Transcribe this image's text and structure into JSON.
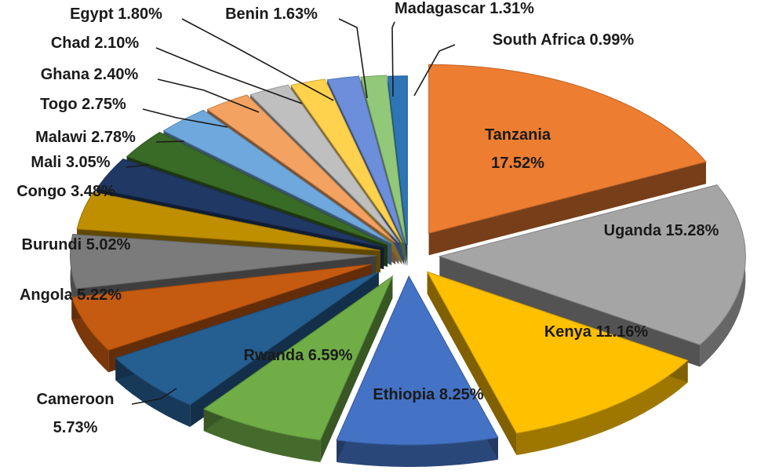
{
  "chart_data": {
    "type": "pie",
    "style": "3d-exploded",
    "title": "",
    "slices": [
      {
        "label": "Tanzania",
        "value": 17.52,
        "text": "Tanzania\n17.52%",
        "color": "#ED7D31"
      },
      {
        "label": "Uganda",
        "value": 15.28,
        "text": "Uganda 15.28%",
        "color": "#A5A5A5"
      },
      {
        "label": "Kenya",
        "value": 11.16,
        "text": "Kenya 11.16%",
        "color": "#FFC000"
      },
      {
        "label": "Ethiopia",
        "value": 8.25,
        "text": "Ethiopia 8.25%",
        "color": "#4472C4"
      },
      {
        "label": "Rwanda",
        "value": 6.59,
        "text": "Rwanda 6.59%",
        "color": "#70AD47"
      },
      {
        "label": "Cameroon",
        "value": 5.73,
        "text": "Cameroon\n5.73%",
        "color": "#255E91"
      },
      {
        "label": "Angola",
        "value": 5.22,
        "text": "Angola 5.22%",
        "color": "#C55A11"
      },
      {
        "label": "Burundi",
        "value": 5.02,
        "text": "Burundi 5.02%",
        "color": "#7B7B7B"
      },
      {
        "label": "Congo",
        "value": 3.48,
        "text": "Congo 3.48%",
        "color": "#BF8F00"
      },
      {
        "label": "Mali",
        "value": 3.05,
        "text": "Mali 3.05%",
        "color": "#203864"
      },
      {
        "label": "Malawi",
        "value": 2.78,
        "text": "Malawi 2.78%",
        "color": "#3A6B26"
      },
      {
        "label": "Togo",
        "value": 2.75,
        "text": "Togo 2.75%",
        "color": "#6FA8DC"
      },
      {
        "label": "Ghana",
        "value": 2.4,
        "text": "Ghana 2.40%",
        "color": "#F4A261"
      },
      {
        "label": "Chad",
        "value": 2.1,
        "text": "Chad 2.10%",
        "color": "#BFBFBF"
      },
      {
        "label": "Egypt",
        "value": 1.8,
        "text": "Egypt 1.80%",
        "color": "#FFD24D"
      },
      {
        "label": "Benin",
        "value": 1.63,
        "text": "Benin 1.63%",
        "color": "#6C8EDB"
      },
      {
        "label": "Madagascar",
        "value": 1.31,
        "text": "Madagascar 1.31%",
        "color": "#92C87A"
      },
      {
        "label": "South Africa",
        "value": 0.99,
        "text": "South Africa 0.99%",
        "color": "#2E75B6"
      }
    ]
  }
}
